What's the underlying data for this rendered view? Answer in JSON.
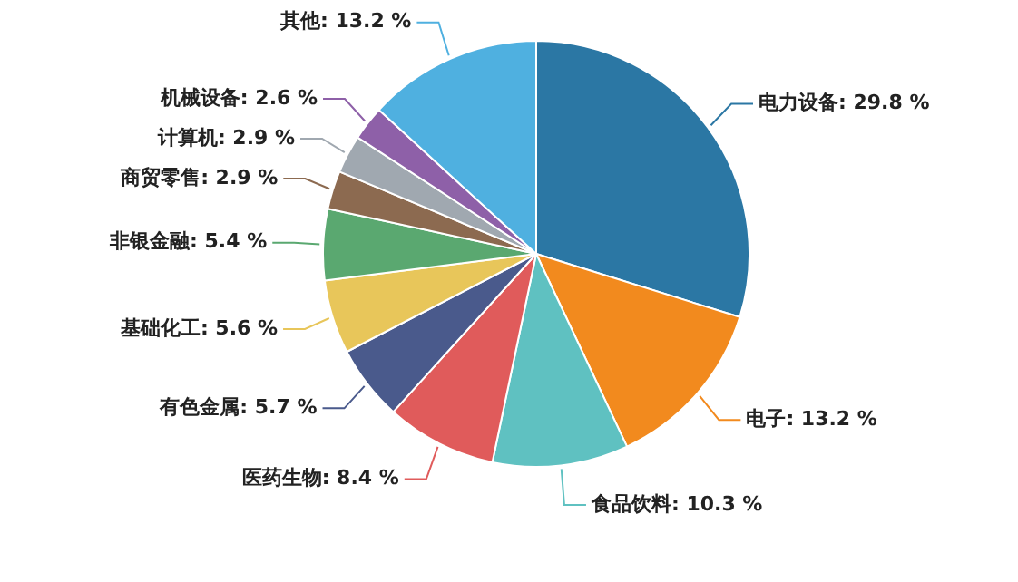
{
  "chart_data": {
    "type": "pie",
    "categories": [
      "电力设备",
      "电子",
      "食品饮料",
      "医药生物",
      "有色金属",
      "基础化工",
      "非银金融",
      "商贸零售",
      "计算机",
      "机械设备",
      "其他"
    ],
    "values": [
      29.8,
      13.2,
      10.3,
      8.4,
      5.7,
      5.6,
      5.4,
      2.9,
      2.9,
      2.6,
      13.2
    ],
    "value_labels": [
      "29.8 %",
      "13.2 %",
      "10.3 %",
      "8.4 %",
      "5.7 %",
      "5.6 %",
      "5.4 %",
      "2.9 %",
      "2.9 %",
      "2.6 %",
      "13.2 %"
    ],
    "colors": [
      "#2b77a4",
      "#f28a1e",
      "#5fc1c1",
      "#e05b5b",
      "#4a5a8c",
      "#e8c65a",
      "#5aa870",
      "#8c6a50",
      "#a0a8b0",
      "#8e60a8",
      "#4fb0e0"
    ],
    "legend": false
  }
}
